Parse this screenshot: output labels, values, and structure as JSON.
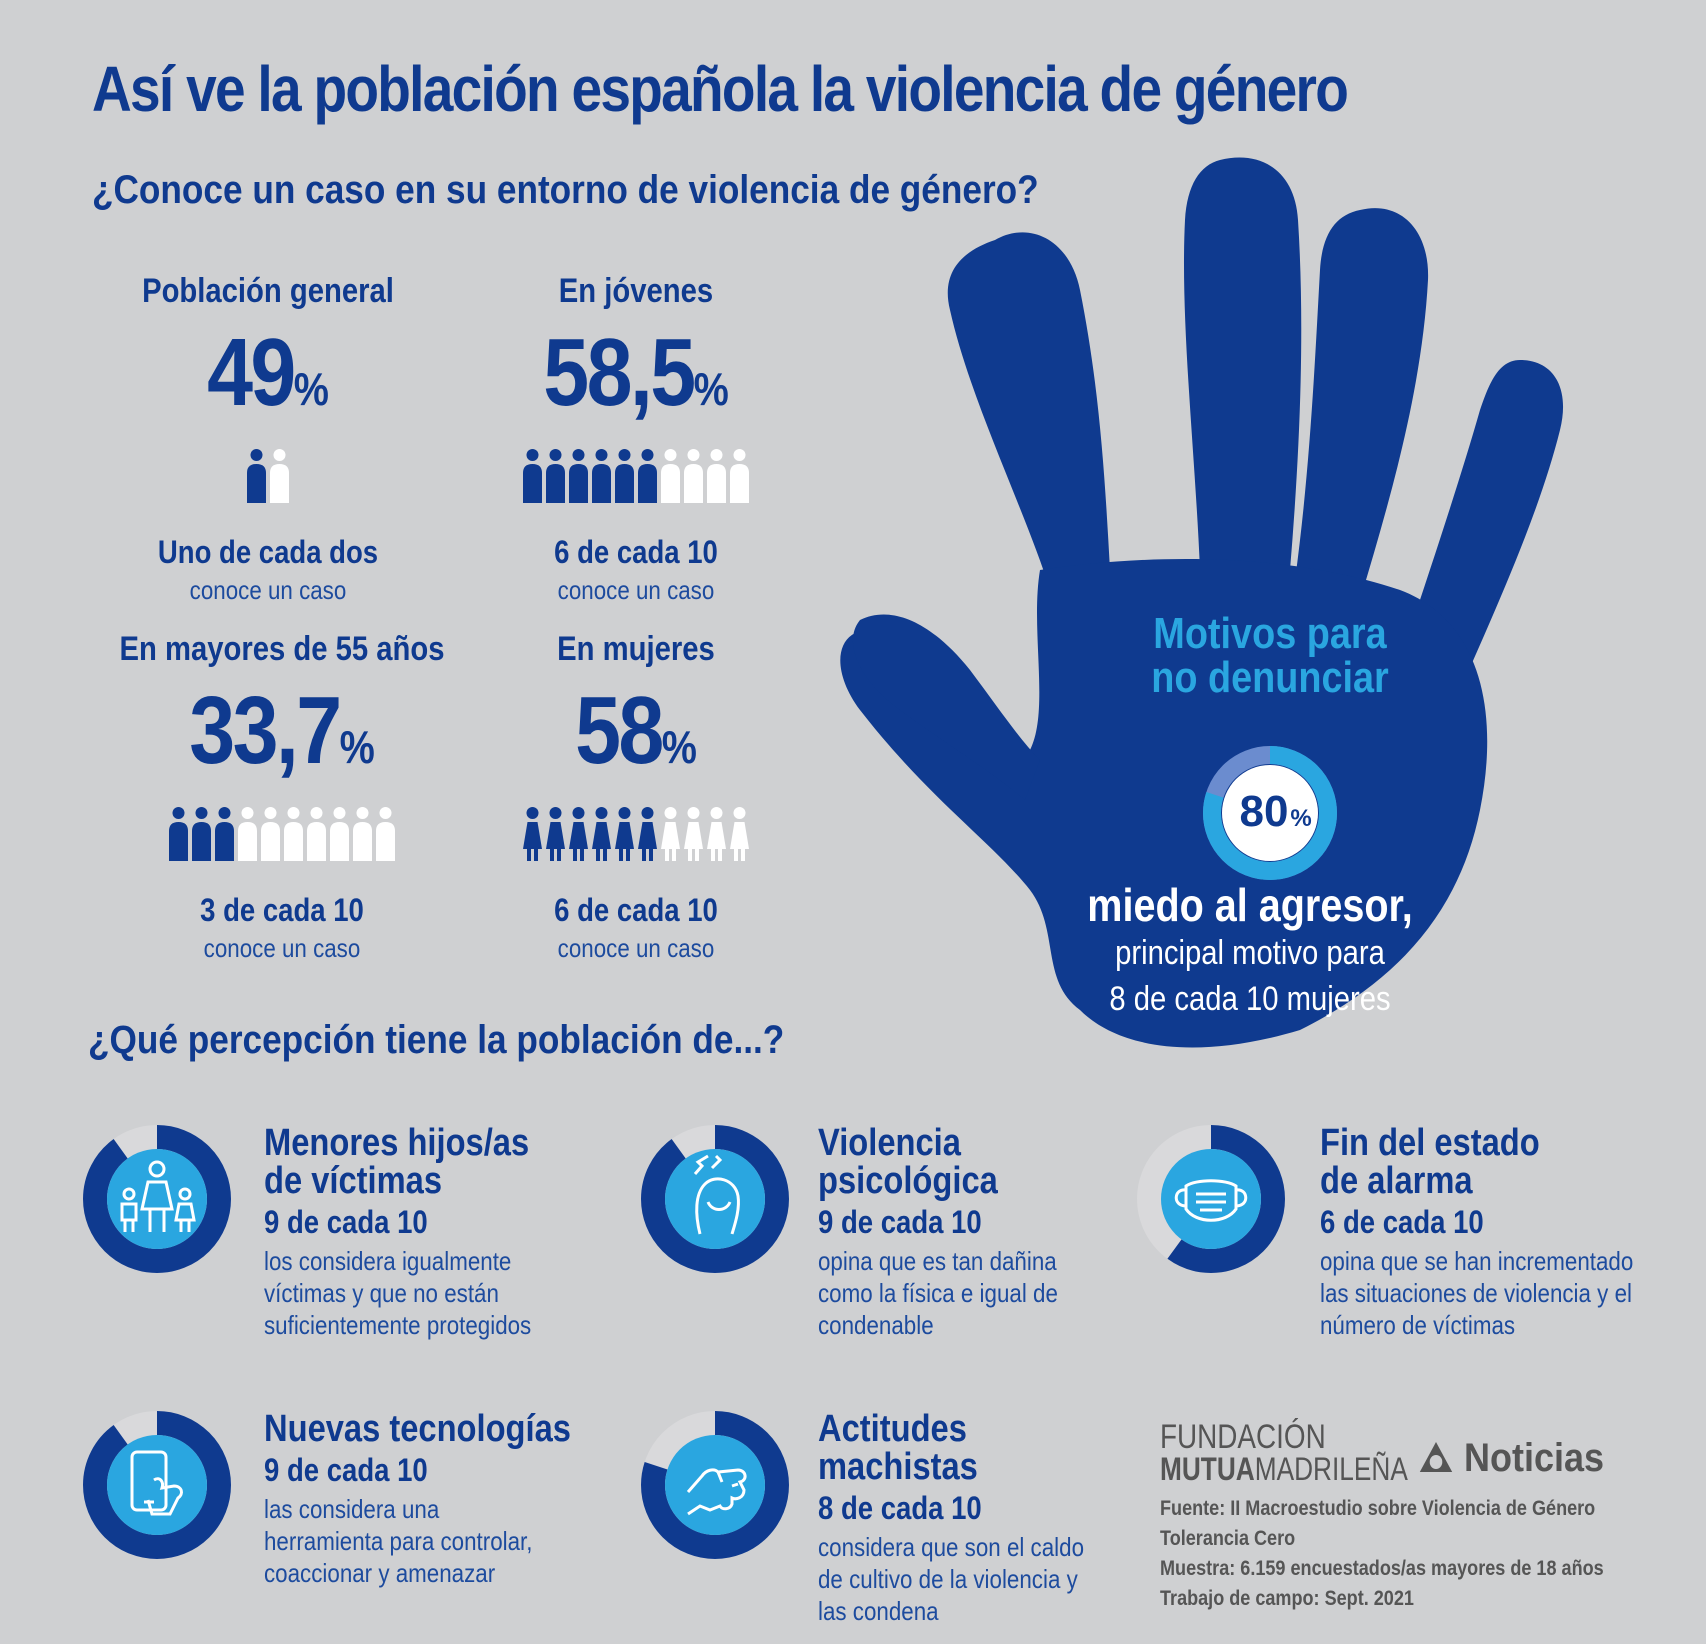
{
  "title": "Así ve la población española la violencia de género",
  "question1": "¿Conoce un caso en su entorno de violencia de género?",
  "question2": "¿Qué percepción tiene la población de...?",
  "stats": [
    {
      "label": "Población general",
      "value": "49",
      "pct": "%",
      "fraction": "Uno de cada dos",
      "sub": "conoce un caso",
      "filled": 1,
      "total": 2,
      "figure": "person"
    },
    {
      "label": "En jóvenes",
      "value": "58,5",
      "pct": "%",
      "fraction": "6 de cada 10",
      "sub": "conoce un caso",
      "filled": 6,
      "total": 10,
      "figure": "person"
    },
    {
      "label": "En mayores de 55 años",
      "value": "33,7",
      "pct": "%",
      "fraction": "3 de cada 10",
      "sub": "conoce un caso",
      "filled": 3,
      "total": 10,
      "figure": "person"
    },
    {
      "label": "En mujeres",
      "value": "58",
      "pct": "%",
      "fraction": "6 de cada 10",
      "sub": "conoce un caso",
      "filled": 6,
      "total": 10,
      "figure": "woman"
    }
  ],
  "motivos": {
    "title_line1": "Motivos para",
    "title_line2": "no denunciar",
    "value": "80",
    "pct": "%",
    "main": "miedo al agresor,",
    "sub_line1": "principal motivo para",
    "sub_line2": "8 de cada 10 mujeres",
    "share": 0.8
  },
  "cards": [
    {
      "title1": "Menores hijos/as",
      "title2": "de víctimas",
      "fraction": "9 de cada 10",
      "desc": [
        "los considera igualmente",
        "víctimas y que no están",
        "suficientemente protegidos"
      ],
      "share": 0.9,
      "icon": "family-icon"
    },
    {
      "title1": "Violencia",
      "title2": "psicológica",
      "fraction": "9 de cada 10",
      "desc": [
        "opina que es tan dañina",
        "como la física e igual de",
        "condenable"
      ],
      "share": 0.9,
      "icon": "distressed-woman-icon"
    },
    {
      "title1": "Fin del estado",
      "title2": "de alarma",
      "fraction": "6 de cada 10",
      "desc": [
        "opina que se han incrementado",
        "las situaciones de violencia y el",
        "número de víctimas"
      ],
      "share": 0.6,
      "icon": "face-mask-icon"
    },
    {
      "title1": "Nuevas tecnologías",
      "title2": "",
      "fraction": "9 de cada 10",
      "desc": [
        "las considera una",
        "herramienta para controlar,",
        "coaccionar y amenazar"
      ],
      "share": 0.9,
      "icon": "smartphone-icon"
    },
    {
      "title1": "Actitudes",
      "title2": "machistas",
      "fraction": "8 de cada 10",
      "desc": [
        "considera que son el caldo",
        "de cultivo de la violencia y",
        "las condena"
      ],
      "share": 0.8,
      "icon": "fist-icon"
    }
  ],
  "brand": {
    "fundacion": "FUNDACIÓN",
    "mutua_bold": "MUTUA",
    "mutua_rest": "MADRILEÑA",
    "noticias": "Noticias"
  },
  "source": [
    "Fuente: II Macroestudio sobre Violencia de Género",
    "Tolerancia Cero",
    "Muestra: 6.159 encuestados/as mayores de 18 años",
    "Trabajo de campo: Sept. 2021"
  ],
  "colors": {
    "navy": "#0f3a8f",
    "light_blue": "#2aa6e0",
    "grey_track": "#d9d9db",
    "background": "#cfd0d2"
  },
  "chart_data": {
    "type": "table",
    "categories": [
      "Población general",
      "En jóvenes",
      "En mayores de 55 años",
      "En mujeres"
    ],
    "values": [
      49,
      58.5,
      33.7,
      58
    ]
  }
}
